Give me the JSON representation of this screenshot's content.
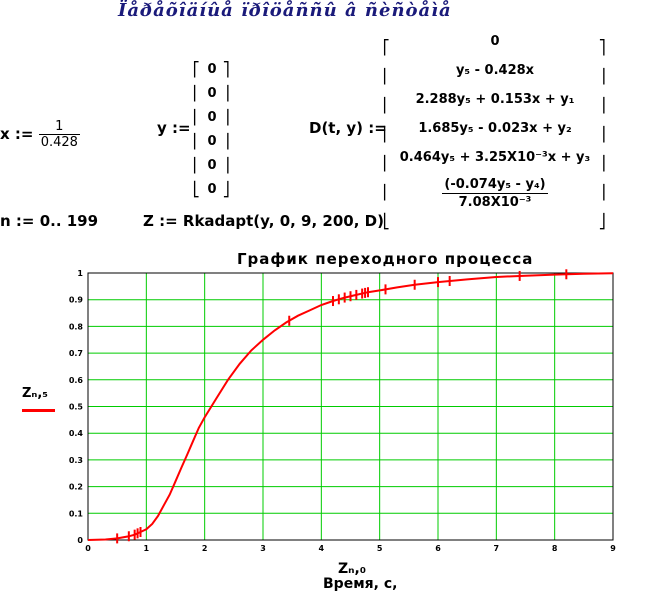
{
  "header": {
    "title": "Ïåðåõîäíûå ïðîöåññû â ñèñòåìå"
  },
  "equations": {
    "x_lhs": "x :=",
    "x_num": "1",
    "x_den": "0.428",
    "y_lhs": "y :=",
    "y_values": [
      "0",
      "0",
      "0",
      "0",
      "0",
      "0"
    ],
    "d_lhs": "D(t, y) :=",
    "d_rows": [
      "0",
      "y₅ - 0.428x",
      "2.288y₅ + 0.153x + y₁",
      "1.685y₅ - 0.023x + y₂",
      "0.464y₅ + 3.25X10⁻³x + y₃"
    ],
    "d_frac_num": "(-0.074y₅ - y₄)",
    "d_frac_den": "7.08X10⁻³",
    "n_def": "n := 0.. 199",
    "z_def": "Z := Rkadapt(y, 0, 9, 200, D)"
  },
  "chart_data": {
    "type": "line",
    "title": "График переходного процесса",
    "xlabel": "Zₙ,₀",
    "xlabel_sub": "Время, с,",
    "ylabel": "Zₙ,₅",
    "xlim": [
      0,
      9
    ],
    "ylim": [
      0,
      1
    ],
    "xticks": [
      0,
      1,
      2,
      3,
      4,
      5,
      6,
      7,
      8,
      9
    ],
    "yticks": [
      0,
      0.1,
      0.2,
      0.3,
      0.4,
      0.5,
      0.6,
      0.7,
      0.8,
      0.9,
      1
    ],
    "grid": true,
    "series": [
      {
        "name": "Zₙ,₅",
        "color": "#ff0000",
        "x": [
          0,
          0.3,
          0.5,
          0.7,
          0.8,
          0.85,
          0.9,
          1.0,
          1.1,
          1.2,
          1.3,
          1.4,
          1.5,
          1.6,
          1.7,
          1.8,
          1.9,
          2.0,
          2.2,
          2.4,
          2.6,
          2.8,
          3.0,
          3.2,
          3.4,
          3.6,
          3.8,
          4.0,
          4.2,
          4.4,
          4.6,
          4.8,
          5.0,
          5.3,
          5.6,
          6.0,
          6.5,
          7.0,
          7.5,
          8.0,
          8.5,
          9.0
        ],
        "values": [
          0,
          0.002,
          0.006,
          0.014,
          0.02,
          0.025,
          0.03,
          0.04,
          0.06,
          0.09,
          0.13,
          0.17,
          0.22,
          0.27,
          0.32,
          0.37,
          0.42,
          0.46,
          0.53,
          0.6,
          0.66,
          0.71,
          0.75,
          0.785,
          0.815,
          0.84,
          0.86,
          0.88,
          0.895,
          0.908,
          0.918,
          0.928,
          0.935,
          0.946,
          0.956,
          0.966,
          0.976,
          0.985,
          0.99,
          0.994,
          0.997,
          0.999
        ]
      }
    ],
    "markers_x": [
      0.5,
      0.7,
      0.8,
      0.85,
      0.9,
      3.45,
      4.2,
      4.3,
      4.4,
      4.5,
      4.6,
      4.7,
      4.75,
      4.8,
      5.1,
      5.6,
      6.0,
      6.2,
      7.4,
      8.2
    ]
  },
  "colors": {
    "grid": "#00cc00",
    "series": "#ff0000",
    "header": "#1a1a7a"
  }
}
